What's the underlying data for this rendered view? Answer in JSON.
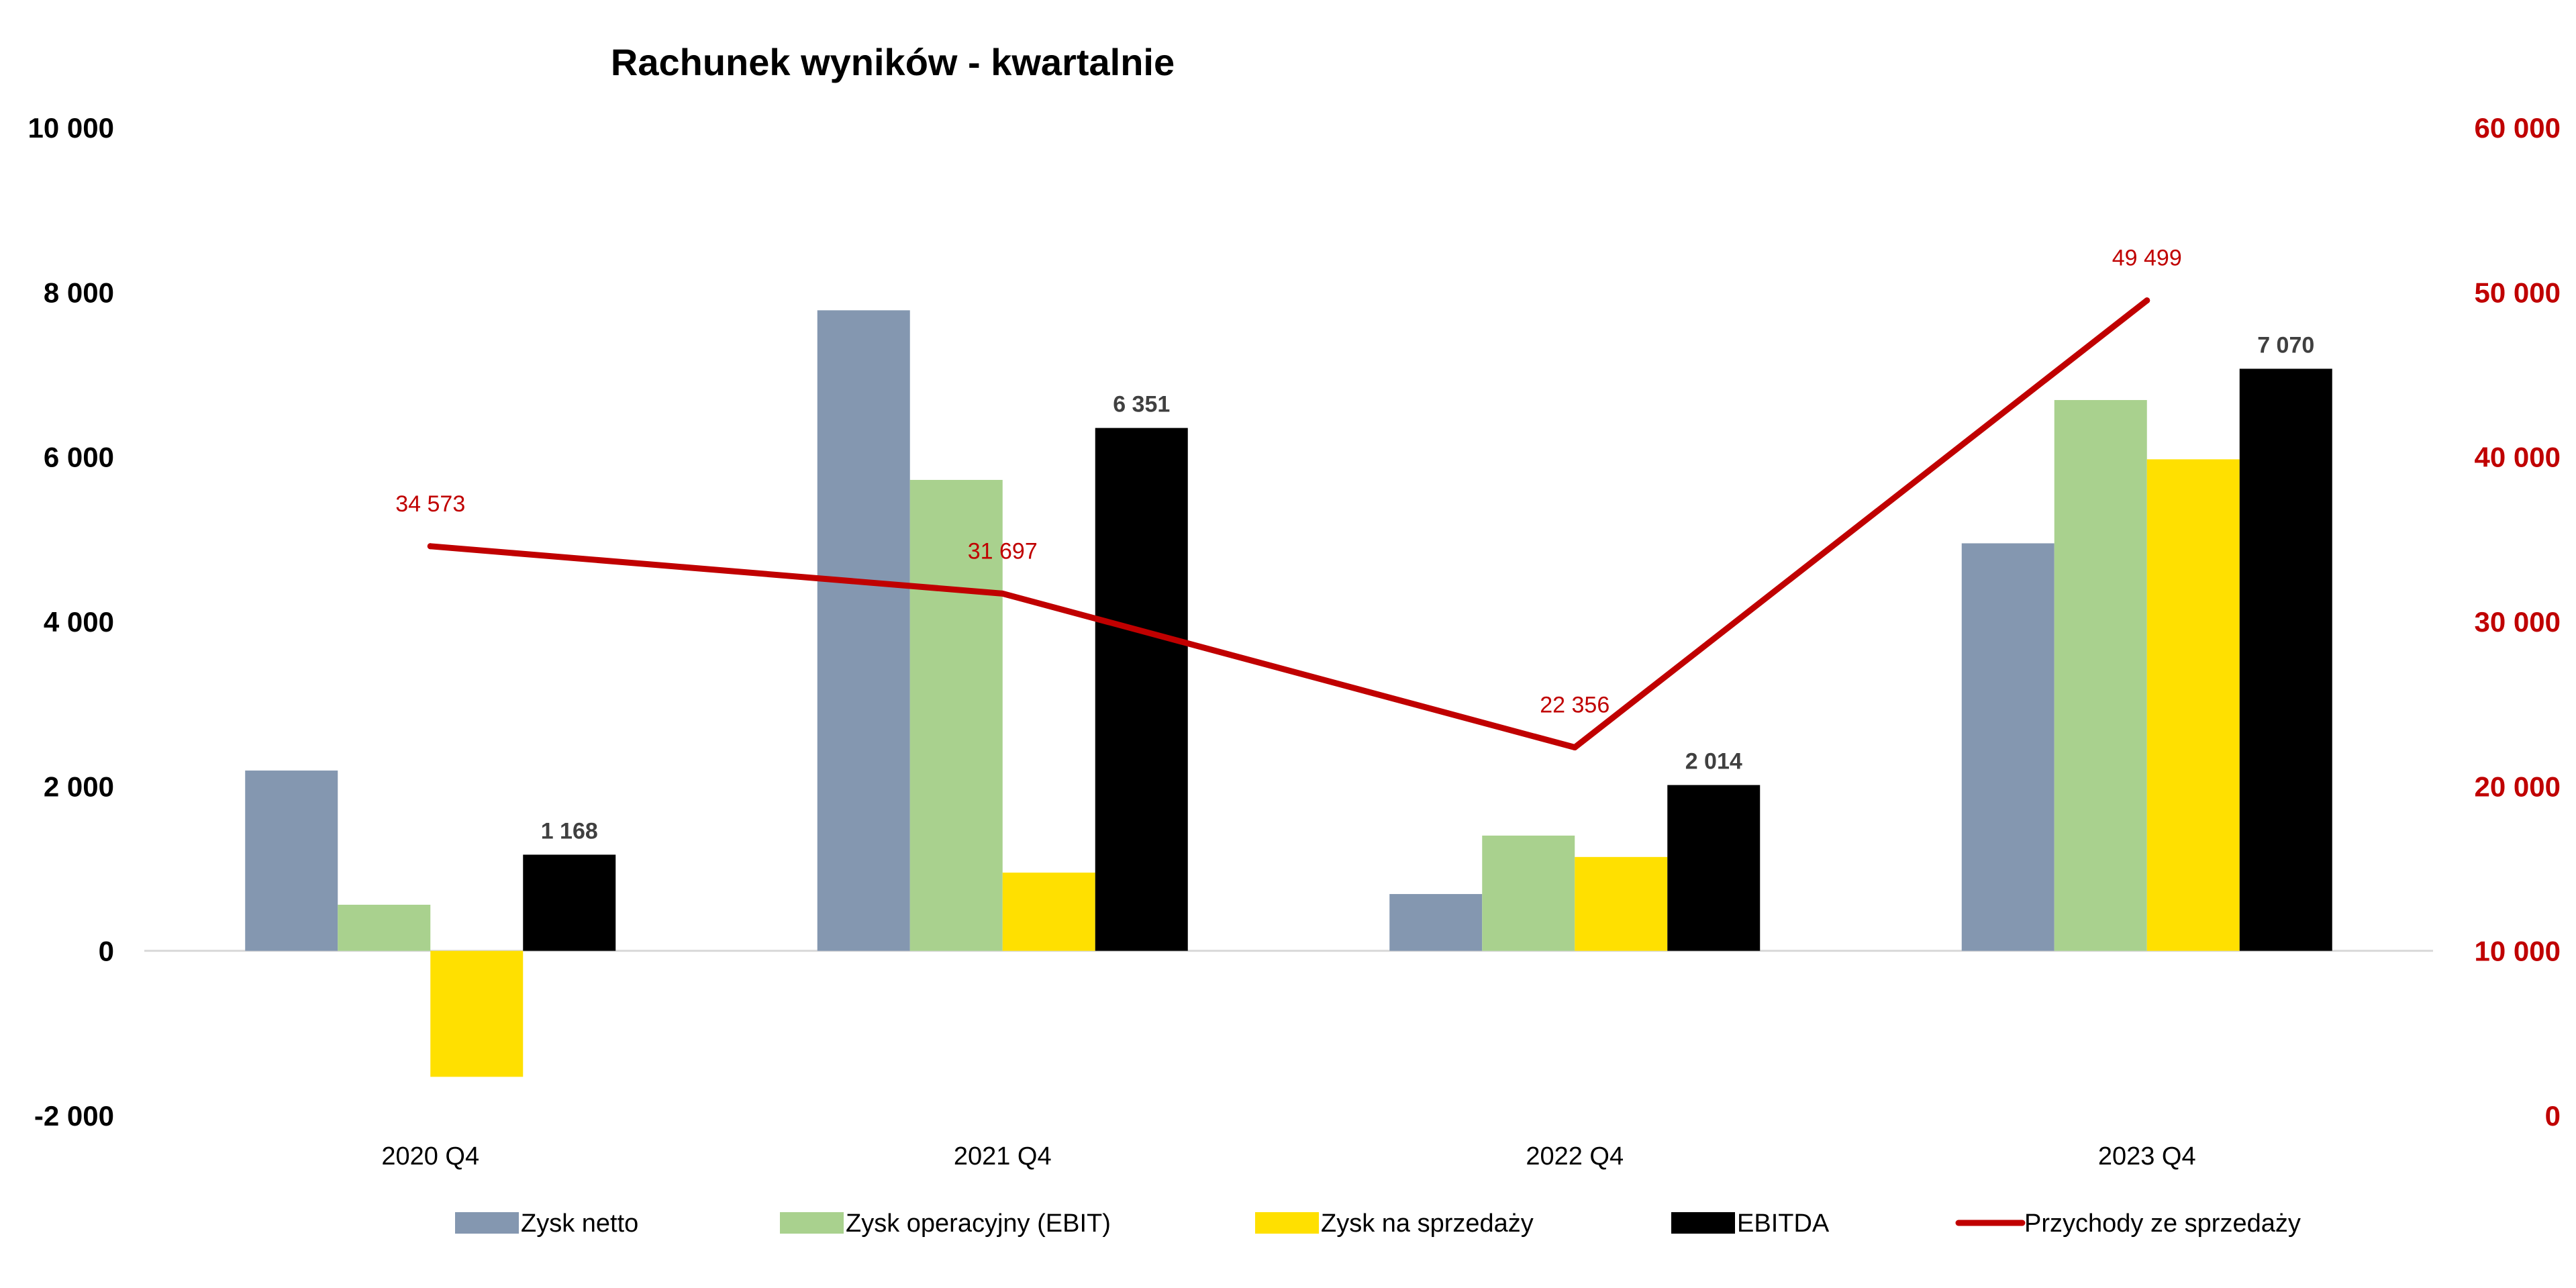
{
  "chart_data": {
    "type": "bar",
    "title": "Rachunek wyników - kwartalnie",
    "categories": [
      "2020 Q4",
      "2021 Q4",
      "2022 Q4",
      "2023 Q4"
    ],
    "y_left": {
      "lim": [
        -2000,
        10000
      ],
      "ticks": [
        -2000,
        0,
        2000,
        4000,
        6000,
        8000,
        10000
      ],
      "tick_labels": [
        "-2 000",
        "0",
        "2 000",
        "4 000",
        "6 000",
        "8 000",
        "10 000"
      ]
    },
    "y_right": {
      "lim": [
        0,
        60000
      ],
      "ticks": [
        0,
        10000,
        20000,
        30000,
        40000,
        50000,
        60000
      ],
      "tick_labels": [
        "0",
        "10 000",
        "20 000",
        "30 000",
        "40 000",
        "50 000",
        "60 000"
      ],
      "color": "#c00000"
    },
    "bar_series": [
      {
        "name": "Zysk netto",
        "values": [
          2190,
          7780,
          690,
          4950
        ],
        "color": "#8497b0",
        "labels": [
          "",
          "",
          "",
          ""
        ]
      },
      {
        "name": "Zysk operacyjny (EBIT)",
        "values": [
          560,
          5720,
          1400,
          6690
        ],
        "color": "#a9d18e",
        "labels": [
          "",
          "",
          "",
          ""
        ]
      },
      {
        "name": "Zysk na sprzedaży",
        "values": [
          -1530,
          950,
          1140,
          5970
        ],
        "color": "#ffe000",
        "labels": [
          "",
          "",
          "",
          ""
        ]
      },
      {
        "name": "EBITDA",
        "values": [
          1168,
          6351,
          2014,
          7070
        ],
        "color": "#000000",
        "labels": [
          "1 168",
          "6 351",
          "2 014",
          "7 070"
        ]
      }
    ],
    "line_series": [
      {
        "name": "Przychody ze sprzedaży",
        "axis": "right",
        "values": [
          34573,
          31697,
          22356,
          49499
        ],
        "color": "#c00000",
        "labels": [
          "34 573",
          "31 697",
          "22 356",
          "49 499"
        ]
      }
    ],
    "grid": false,
    "legend_position": "bottom"
  }
}
